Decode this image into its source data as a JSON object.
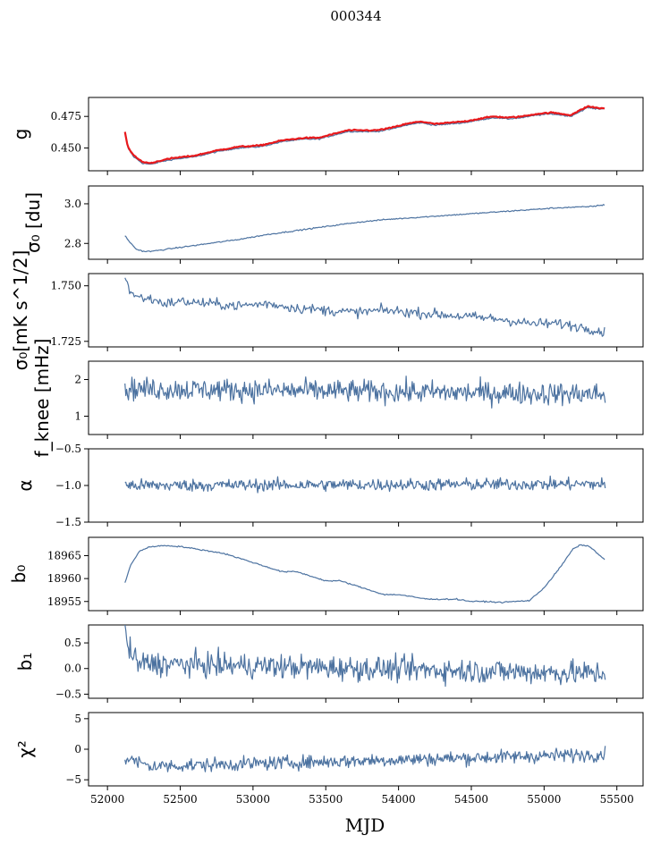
{
  "figure": {
    "title": "000344",
    "xlabel": "MJD"
  },
  "colors": {
    "series": "#4c72a0",
    "fit": "#e8191c",
    "axis": "#000000",
    "background": "#ffffff"
  },
  "chart_data": [
    {
      "type": "line",
      "name": "g",
      "ylabel": "g",
      "ylim": [
        0.432,
        0.49
      ],
      "yticks": [
        0.45,
        0.475
      ],
      "ytick_labels": [
        "0.450",
        "0.475"
      ],
      "xlim": [
        51870,
        55680
      ],
      "grid": false,
      "legend": "none",
      "series": [
        {
          "name": "",
          "x": [
            52120,
            52140,
            52180,
            52240,
            52300,
            52360,
            52450,
            52600,
            52750,
            52900,
            53050,
            53200,
            53350,
            53450,
            53550,
            53650,
            53750,
            53850,
            53950,
            54050,
            54150,
            54250,
            54350,
            54450,
            54550,
            54650,
            54750,
            54850,
            54950,
            55050,
            55120,
            55180,
            55250,
            55300,
            55350,
            55420
          ],
          "y": [
            0.462,
            0.45,
            0.443,
            0.438,
            0.437,
            0.439,
            0.441,
            0.443,
            0.447,
            0.45,
            0.451,
            0.455,
            0.457,
            0.457,
            0.46,
            0.463,
            0.463,
            0.463,
            0.465,
            0.468,
            0.47,
            0.468,
            0.469,
            0.47,
            0.472,
            0.474,
            0.473,
            0.474,
            0.476,
            0.477,
            0.476,
            0.475,
            0.479,
            0.482,
            0.481,
            0.481
          ]
        },
        {
          "name": "",
          "x": [
            52120,
            52140,
            52180,
            52240,
            52300,
            52360,
            52450,
            52600,
            52750,
            52900,
            53050,
            53200,
            53350,
            53450,
            53550,
            53650,
            53750,
            53850,
            53950,
            54050,
            54150,
            54250,
            54350,
            54450,
            54550,
            54650,
            54750,
            54850,
            54950,
            55050,
            55120,
            55180,
            55250,
            55300,
            55350,
            55420
          ],
          "y": [
            0.463,
            0.451,
            0.444,
            0.439,
            0.438,
            0.44,
            0.442,
            0.444,
            0.448,
            0.451,
            0.452,
            0.456,
            0.458,
            0.458,
            0.461,
            0.464,
            0.464,
            0.464,
            0.466,
            0.469,
            0.471,
            0.469,
            0.47,
            0.471,
            0.473,
            0.475,
            0.474,
            0.475,
            0.477,
            0.478,
            0.477,
            0.476,
            0.48,
            0.483,
            0.482,
            0.481
          ]
        }
      ]
    },
    {
      "type": "line",
      "name": "sigma0-du",
      "ylabel": "σ₀ [du]",
      "ylim": [
        2.72,
        3.09
      ],
      "yticks": [
        2.8,
        3.0
      ],
      "ytick_labels": [
        "2.8",
        "3.0"
      ],
      "xlim": [
        51870,
        55680
      ],
      "grid": false,
      "legend": "none",
      "series": [
        {
          "name": "",
          "x": [
            52120,
            52160,
            52200,
            52250,
            52300,
            52400,
            52500,
            52700,
            52900,
            53100,
            53300,
            53500,
            53700,
            53900,
            54100,
            54300,
            54500,
            54700,
            54900,
            55100,
            55300,
            55420
          ],
          "y": [
            2.84,
            2.8,
            2.77,
            2.76,
            2.76,
            2.77,
            2.78,
            2.8,
            2.82,
            2.845,
            2.865,
            2.885,
            2.905,
            2.92,
            2.93,
            2.94,
            2.95,
            2.96,
            2.97,
            2.98,
            2.985,
            2.995
          ]
        }
      ]
    },
    {
      "type": "line",
      "name": "sigma0-mk",
      "ylabel": "σ₀[mK s^1/2]",
      "ylim": [
        1.7225,
        1.7555
      ],
      "yticks": [
        1.725,
        1.75
      ],
      "ytick_labels": [
        "1.725",
        "1.750"
      ],
      "xlim": [
        51870,
        55680
      ],
      "grid": false,
      "legend": "none",
      "series": [
        {
          "name": "",
          "x": [
            52120,
            52150,
            52200,
            52300,
            52400,
            52500,
            52700,
            52900,
            53100,
            53300,
            53500,
            53700,
            53900,
            54100,
            54300,
            54500,
            54700,
            54900,
            55100,
            55300,
            55420
          ],
          "y": [
            1.755,
            1.748,
            1.745,
            1.744,
            1.742,
            1.743,
            1.742,
            1.741,
            1.742,
            1.74,
            1.739,
            1.738,
            1.739,
            1.738,
            1.737,
            1.736,
            1.735,
            1.733,
            1.733,
            1.731,
            1.729
          ]
        }
      ]
    },
    {
      "type": "line",
      "name": "fknee",
      "ylabel": "f_knee [mHz]",
      "ylim": [
        0.5,
        2.5
      ],
      "yticks": [
        1,
        2
      ],
      "ytick_labels": [
        "1",
        "2"
      ],
      "xlim": [
        51870,
        55680
      ],
      "grid": false,
      "legend": "none",
      "noise_level": [
        1.7,
        0.22
      ],
      "series": [
        {
          "name": "",
          "x": [
            52120,
            55420
          ],
          "y": [
            1.75,
            1.6
          ]
        }
      ]
    },
    {
      "type": "line",
      "name": "alpha",
      "ylabel": "α",
      "ylim": [
        -1.5,
        -0.5
      ],
      "yticks": [
        -1.5,
        -1.0,
        -0.5
      ],
      "ytick_labels": [
        "−1.5",
        "−1.0",
        "−0.5"
      ],
      "xlim": [
        51870,
        55680
      ],
      "grid": false,
      "legend": "none",
      "noise_level": [
        -1.0,
        0.06
      ],
      "series": [
        {
          "name": "",
          "x": [
            52120,
            55420
          ],
          "y": [
            -1.0,
            -0.98
          ]
        }
      ]
    },
    {
      "type": "line",
      "name": "b0",
      "ylabel": "b₀",
      "ylim": [
        18953,
        18969
      ],
      "yticks": [
        18955,
        18960,
        18965
      ],
      "ytick_labels": [
        "18955",
        "18960",
        "18965"
      ],
      "xlim": [
        51870,
        55680
      ],
      "grid": false,
      "legend": "none",
      "series": [
        {
          "name": "",
          "x": [
            52120,
            52160,
            52220,
            52300,
            52400,
            52500,
            52600,
            52700,
            52800,
            52900,
            53000,
            53100,
            53200,
            53300,
            53400,
            53500,
            53600,
            53700,
            53800,
            53900,
            54000,
            54100,
            54200,
            54300,
            54400,
            54500,
            54600,
            54700,
            54800,
            54900,
            55000,
            55100,
            55200,
            55250,
            55300,
            55350,
            55420
          ],
          "y": [
            18959,
            18963,
            18966,
            18967,
            18967.2,
            18967,
            18966.5,
            18966,
            18965.5,
            18964.5,
            18963.5,
            18962.5,
            18961.5,
            18961.5,
            18960.5,
            18959.5,
            18959.5,
            18958.5,
            18957.5,
            18956.5,
            18956.5,
            18956,
            18955.5,
            18955.5,
            18955.5,
            18955,
            18955,
            18954.8,
            18955,
            18955.2,
            18958,
            18962,
            18966.5,
            18967.3,
            18967.2,
            18966,
            18964
          ]
        }
      ]
    },
    {
      "type": "line",
      "name": "b1",
      "ylabel": "b₁",
      "ylim": [
        -0.58,
        0.85
      ],
      "yticks": [
        -0.5,
        0.0,
        0.5
      ],
      "ytick_labels": [
        "−0.5",
        "0.0",
        "0.5"
      ],
      "xlim": [
        51870,
        55680
      ],
      "grid": false,
      "legend": "none",
      "noise_level": [
        0.0,
        0.17
      ],
      "series": [
        {
          "name": "",
          "x": [
            52120,
            52140,
            52200,
            55420
          ],
          "y": [
            0.75,
            0.45,
            0.1,
            -0.1
          ]
        }
      ]
    },
    {
      "type": "line",
      "name": "chi2",
      "ylabel": "χ²",
      "ylim": [
        -6,
        6
      ],
      "yticks": [
        -5,
        0,
        5
      ],
      "ytick_labels": [
        "−5",
        "0",
        "5"
      ],
      "xticks": [
        52000,
        52500,
        53000,
        53500,
        54000,
        54500,
        55000,
        55500
      ],
      "xtick_labels": [
        "52000",
        "52500",
        "53000",
        "53500",
        "54000",
        "54500",
        "55000",
        "55500"
      ],
      "xlim": [
        51870,
        55680
      ],
      "grid": false,
      "legend": "none",
      "noise_level": [
        -1.8,
        0.8
      ],
      "series": [
        {
          "name": "",
          "x": [
            52120,
            52300,
            55420
          ],
          "y": [
            -1.5,
            -2.8,
            -0.8
          ]
        }
      ]
    }
  ]
}
